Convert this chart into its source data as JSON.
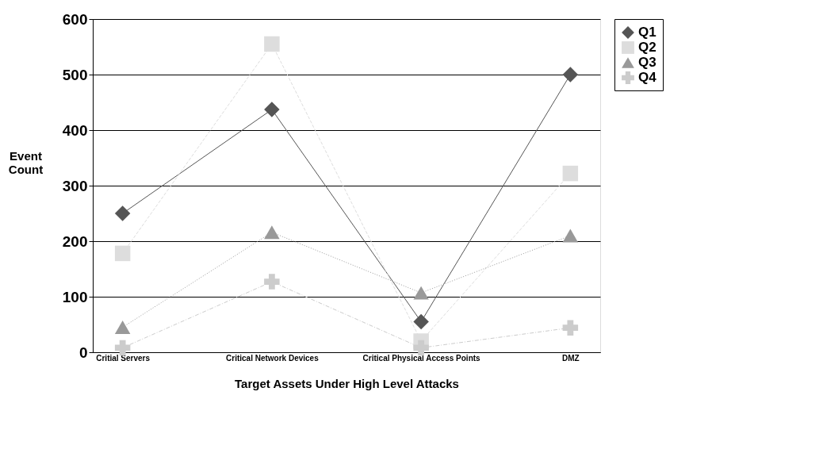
{
  "chart_data": {
    "type": "line",
    "xlabel": "Target Assets Under High Level Attacks",
    "ylabel": "Event Count",
    "categories": [
      "Critial Servers",
      "Critical Network Devices",
      "Critical Physical Access Points",
      "DMZ"
    ],
    "ylim": [
      0,
      600
    ],
    "yticks": [
      0,
      100,
      200,
      300,
      400,
      500,
      600
    ],
    "grid": "y",
    "legend": "right",
    "series": [
      {
        "name": "Q1",
        "color": "#555555",
        "marker": "diamond",
        "line_style": "solid",
        "values": [
          250,
          437,
          55,
          500
        ]
      },
      {
        "name": "Q2",
        "color": "#dddddd",
        "marker": "square",
        "line_style": "dashed",
        "values": [
          178,
          555,
          20,
          322
        ]
      },
      {
        "name": "Q3",
        "color": "#999999",
        "marker": "triangle",
        "line_style": "dotted",
        "values": [
          45,
          216,
          107,
          210
        ]
      },
      {
        "name": "Q4",
        "color": "#cccccc",
        "marker": "cross",
        "line_style": "dashdot",
        "values": [
          8,
          127,
          8,
          44
        ]
      }
    ]
  }
}
